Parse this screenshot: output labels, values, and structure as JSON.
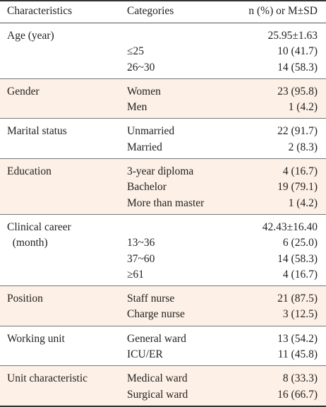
{
  "header": {
    "characteristics": "Characteristics",
    "categories": "Categories",
    "value": "n (%) or M±SD"
  },
  "groups": [
    {
      "rows": [
        {
          "characteristic": "Age (year)",
          "category": "",
          "value": "25.95±1.63"
        },
        {
          "characteristic": "",
          "category": "≤25",
          "value": "10 (41.7)"
        },
        {
          "characteristic": "",
          "category": "26~30",
          "value": "14 (58.3)"
        }
      ]
    },
    {
      "rows": [
        {
          "characteristic": "Gender",
          "category": "Women",
          "value": "23 (95.8)"
        },
        {
          "characteristic": "",
          "category": "Men",
          "value": "1 (4.2)"
        }
      ]
    },
    {
      "rows": [
        {
          "characteristic": "Marital status",
          "category": "Unmarried",
          "value": "22 (91.7)"
        },
        {
          "characteristic": "",
          "category": "Married",
          "value": "2 (8.3)"
        }
      ]
    },
    {
      "rows": [
        {
          "characteristic": "Education",
          "category": "3-year diploma",
          "value": "4 (16.7)"
        },
        {
          "characteristic": "",
          "category": "Bachelor",
          "value": "19 (79.1)"
        },
        {
          "characteristic": "",
          "category": "More than master",
          "value": "1 (4.2)"
        }
      ]
    },
    {
      "rows": [
        {
          "characteristic": "Clinical career",
          "category": "",
          "value": "42.43±16.40"
        },
        {
          "characteristic": "  (month)",
          "category": "13~36",
          "value": "6 (25.0)"
        },
        {
          "characteristic": "",
          "category": "37~60",
          "value": "14 (58.3)"
        },
        {
          "characteristic": "",
          "category": "≥61",
          "value": "4 (16.7)"
        }
      ]
    },
    {
      "rows": [
        {
          "characteristic": "Position",
          "category": "Staff nurse",
          "value": "21 (87.5)"
        },
        {
          "characteristic": "",
          "category": "Charge nurse",
          "value": "3 (12.5)"
        }
      ]
    },
    {
      "rows": [
        {
          "characteristic": "Working unit",
          "category": "General ward",
          "value": "13 (54.2)"
        },
        {
          "characteristic": "",
          "category": "ICU/ER",
          "value": "11 (45.8)"
        }
      ]
    },
    {
      "rows": [
        {
          "characteristic": "Unit characteristic",
          "category": "Medical ward",
          "value": "8 (33.3)"
        },
        {
          "characteristic": "",
          "category": "Surgical ward",
          "value": "16 (66.7)"
        }
      ]
    }
  ]
}
